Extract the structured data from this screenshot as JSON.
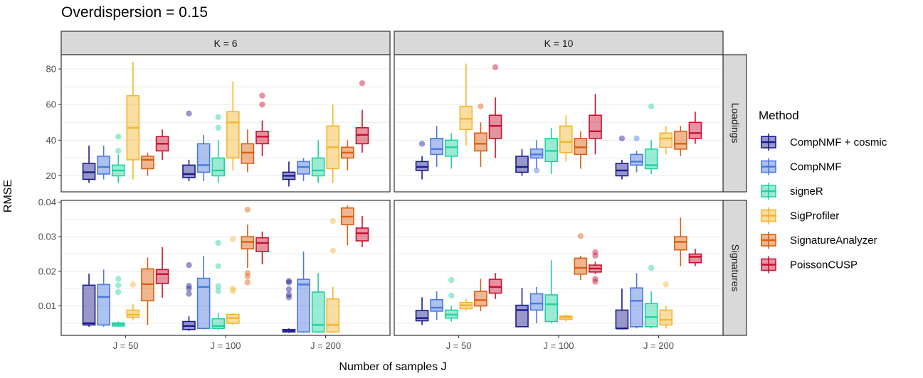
{
  "title": "Overdispersion = 0.15",
  "chart_data": {
    "type": "boxplot",
    "xlabel": "Number of samples J",
    "ylabel": "RMSE",
    "col_facets": [
      "K = 6",
      "K = 10"
    ],
    "row_facets": [
      "Loadings",
      "Signatures"
    ],
    "categories": [
      "J = 50",
      "J = 100",
      "J = 200"
    ],
    "legend": {
      "title": "Method",
      "position": "right",
      "entries": [
        {
          "name": "CompNMF + cosmic",
          "color": "#1a1a8c"
        },
        {
          "name": "CompNMF",
          "color": "#4a78e0"
        },
        {
          "name": "signeR",
          "color": "#22d2a0"
        },
        {
          "name": "SigProfiler",
          "color": "#f5b52e"
        },
        {
          "name": "SignatureAnalyzer",
          "color": "#d95f0e"
        },
        {
          "name": "PoissonCUSP",
          "color": "#c8102e"
        }
      ]
    },
    "rows": [
      {
        "name": "Loadings",
        "yticks": [
          20,
          40,
          60,
          80
        ],
        "ylim": [
          11,
          88
        ],
        "panels": [
          {
            "facet": "K = 6",
            "groups": [
              [
                {
                  "q1": 18,
                  "med": 22,
                  "q3": 27,
                  "lo": 16,
                  "hi": 37,
                  "out": []
                },
                {
                  "q1": 21,
                  "med": 25,
                  "q3": 31,
                  "lo": 18,
                  "hi": 37,
                  "out": []
                },
                {
                  "q1": 20,
                  "med": 23,
                  "q3": 26,
                  "lo": 16,
                  "hi": 32,
                  "out": [
                    34,
                    42
                  ]
                },
                {
                  "q1": 29,
                  "med": 47,
                  "q3": 65,
                  "lo": 18,
                  "hi": 84,
                  "out": []
                },
                {
                  "q1": 24,
                  "med": 29,
                  "q3": 31,
                  "lo": 20,
                  "hi": 33,
                  "out": []
                },
                {
                  "q1": 34,
                  "med": 38,
                  "q3": 42,
                  "lo": 29,
                  "hi": 46,
                  "out": []
                }
              ],
              [
                {
                  "q1": 19,
                  "med": 21,
                  "q3": 26,
                  "lo": 17,
                  "hi": 29,
                  "out": [
                    55
                  ]
                },
                {
                  "q1": 22,
                  "med": 26,
                  "q3": 38,
                  "lo": 17,
                  "hi": 43,
                  "out": []
                },
                {
                  "q1": 20,
                  "med": 23,
                  "q3": 30,
                  "lo": 16,
                  "hi": 40,
                  "out": [
                    47,
                    53
                  ]
                },
                {
                  "q1": 30,
                  "med": 50,
                  "q3": 56,
                  "lo": 23,
                  "hi": 73,
                  "out": []
                },
                {
                  "q1": 27,
                  "med": 33,
                  "q3": 38,
                  "lo": 22,
                  "hi": 46,
                  "out": []
                },
                {
                  "q1": 38,
                  "med": 42,
                  "q3": 45,
                  "lo": 31,
                  "hi": 51,
                  "out": [
                    60,
                    65
                  ]
                }
              ],
              [
                {
                  "q1": 18,
                  "med": 20,
                  "q3": 22,
                  "lo": 14,
                  "hi": 28,
                  "out": []
                },
                {
                  "q1": 21,
                  "med": 25,
                  "q3": 28,
                  "lo": 17,
                  "hi": 30,
                  "out": []
                },
                {
                  "q1": 20,
                  "med": 23,
                  "q3": 30,
                  "lo": 16,
                  "hi": 40,
                  "out": []
                },
                {
                  "q1": 24,
                  "med": 36,
                  "q3": 48,
                  "lo": 16,
                  "hi": 60,
                  "out": []
                },
                {
                  "q1": 30,
                  "med": 33,
                  "q3": 36,
                  "lo": 23,
                  "hi": 40,
                  "out": []
                },
                {
                  "q1": 38,
                  "med": 43,
                  "q3": 47,
                  "lo": 33,
                  "hi": 57,
                  "out": [
                    72
                  ]
                }
              ]
            ]
          },
          {
            "facet": "K = 10",
            "groups": [
              [
                {
                  "q1": 23,
                  "med": 25,
                  "q3": 28,
                  "lo": 18,
                  "hi": 31,
                  "out": [
                    38
                  ]
                },
                {
                  "q1": 32,
                  "med": 35,
                  "q3": 41,
                  "lo": 25,
                  "hi": 48,
                  "out": []
                },
                {
                  "q1": 31,
                  "med": 36,
                  "q3": 40,
                  "lo": 24,
                  "hi": 44,
                  "out": []
                },
                {
                  "q1": 46,
                  "med": 52,
                  "q3": 59,
                  "lo": 37,
                  "hi": 83,
                  "out": []
                },
                {
                  "q1": 34,
                  "med": 38,
                  "q3": 44,
                  "lo": 25,
                  "hi": 50,
                  "out": [
                    59
                  ]
                },
                {
                  "q1": 41,
                  "med": 48,
                  "q3": 54,
                  "lo": 30,
                  "hi": 64,
                  "out": [
                    81
                  ]
                }
              ],
              [
                {
                  "q1": 22,
                  "med": 25,
                  "q3": 31,
                  "lo": 20,
                  "hi": 35,
                  "out": []
                },
                {
                  "q1": 30,
                  "med": 32,
                  "q3": 35,
                  "lo": 24,
                  "hi": 40,
                  "out": [
                    23
                  ]
                },
                {
                  "q1": 28,
                  "med": 34,
                  "q3": 41,
                  "lo": 21,
                  "hi": 47,
                  "out": []
                },
                {
                  "q1": 33,
                  "med": 39,
                  "q3": 48,
                  "lo": 28,
                  "hi": 54,
                  "out": []
                },
                {
                  "q1": 32,
                  "med": 36,
                  "q3": 41,
                  "lo": 24,
                  "hi": 45,
                  "out": []
                },
                {
                  "q1": 41,
                  "med": 45,
                  "q3": 54,
                  "lo": 32,
                  "hi": 66,
                  "out": []
                }
              ],
              [
                {
                  "q1": 20,
                  "med": 23,
                  "q3": 27,
                  "lo": 18,
                  "hi": 29,
                  "out": [
                    41
                  ]
                },
                {
                  "q1": 26,
                  "med": 28,
                  "q3": 32,
                  "lo": 22,
                  "hi": 34,
                  "out": [
                    41
                  ]
                },
                {
                  "q1": 24,
                  "med": 26,
                  "q3": 35,
                  "lo": 21,
                  "hi": 40,
                  "out": [
                    59
                  ]
                },
                {
                  "q1": 36,
                  "med": 41,
                  "q3": 44,
                  "lo": 32,
                  "hi": 48,
                  "out": []
                },
                {
                  "q1": 35,
                  "med": 38,
                  "q3": 45,
                  "lo": 31,
                  "hi": 48,
                  "out": []
                },
                {
                  "q1": 41,
                  "med": 44,
                  "q3": 50,
                  "lo": 38,
                  "hi": 56,
                  "out": []
                }
              ]
            ]
          }
        ]
      },
      {
        "name": "Signatures",
        "yticks": [
          0.01,
          0.02,
          0.03,
          0.04
        ],
        "yticklabels": [
          "0.01",
          "0.02",
          "0.03",
          "0.04"
        ],
        "ylim": [
          0.0015,
          0.0405
        ],
        "panels": [
          {
            "facet": "K = 6",
            "groups": [
              [
                {
                  "q1": 0.0045,
                  "med": 0.005,
                  "q3": 0.016,
                  "lo": 0.004,
                  "hi": 0.0193,
                  "out": []
                },
                {
                  "q1": 0.0045,
                  "med": 0.0126,
                  "q3": 0.0162,
                  "lo": 0.004,
                  "hi": 0.0205,
                  "out": []
                },
                {
                  "q1": 0.0042,
                  "med": 0.0047,
                  "q3": 0.0051,
                  "lo": 0.004,
                  "hi": 0.0055,
                  "out": [
                    0.014,
                    0.016,
                    0.0178
                  ]
                },
                {
                  "q1": 0.0067,
                  "med": 0.0075,
                  "q3": 0.0088,
                  "lo": 0.0058,
                  "hi": 0.0105,
                  "out": [
                    0.0162
                  ]
                },
                {
                  "q1": 0.0115,
                  "med": 0.0163,
                  "q3": 0.0207,
                  "lo": 0.0045,
                  "hi": 0.024,
                  "out": []
                },
                {
                  "q1": 0.0165,
                  "med": 0.0192,
                  "q3": 0.0205,
                  "lo": 0.0124,
                  "hi": 0.027,
                  "out": []
                }
              ],
              [
                {
                  "q1": 0.0032,
                  "med": 0.0042,
                  "q3": 0.0055,
                  "lo": 0.0028,
                  "hi": 0.007,
                  "out": [
                    0.0135,
                    0.015,
                    0.0158,
                    0.0218
                  ]
                },
                {
                  "q1": 0.0035,
                  "med": 0.0155,
                  "q3": 0.018,
                  "lo": 0.0032,
                  "hi": 0.0245,
                  "out": []
                },
                {
                  "q1": 0.0035,
                  "med": 0.0042,
                  "q3": 0.0063,
                  "lo": 0.003,
                  "hi": 0.008,
                  "out": [
                    0.0143,
                    0.0157,
                    0.0215,
                    0.0282
                  ]
                },
                {
                  "q1": 0.005,
                  "med": 0.0065,
                  "q3": 0.0075,
                  "lo": 0.0045,
                  "hi": 0.008,
                  "out": [
                    0.0143,
                    0.015,
                    0.0293
                  ]
                },
                {
                  "q1": 0.0265,
                  "med": 0.0285,
                  "q3": 0.03,
                  "lo": 0.021,
                  "hi": 0.0335,
                  "out": [
                    0.0168,
                    0.0185,
                    0.0195,
                    0.0378
                  ]
                },
                {
                  "q1": 0.0257,
                  "med": 0.0282,
                  "q3": 0.0297,
                  "lo": 0.022,
                  "hi": 0.0315,
                  "out": []
                }
              ],
              [
                {
                  "q1": 0.0025,
                  "med": 0.0027,
                  "q3": 0.0032,
                  "lo": 0.0022,
                  "hi": 0.0035,
                  "out": [
                    0.0125,
                    0.0133,
                    0.0148,
                    0.0168,
                    0.0172
                  ]
                },
                {
                  "q1": 0.0025,
                  "med": 0.0162,
                  "q3": 0.0177,
                  "lo": 0.0022,
                  "hi": 0.0257,
                  "out": []
                },
                {
                  "q1": 0.0025,
                  "med": 0.0045,
                  "q3": 0.014,
                  "lo": 0.0022,
                  "hi": 0.0195,
                  "out": []
                },
                {
                  "q1": 0.0025,
                  "med": 0.0045,
                  "q3": 0.012,
                  "lo": 0.0022,
                  "hi": 0.0155,
                  "out": [
                    0.026,
                    0.0345
                  ]
                },
                {
                  "q1": 0.0335,
                  "med": 0.0358,
                  "q3": 0.0383,
                  "lo": 0.0275,
                  "hi": 0.039,
                  "out": []
                },
                {
                  "q1": 0.0288,
                  "med": 0.031,
                  "q3": 0.0325,
                  "lo": 0.027,
                  "hi": 0.036,
                  "out": []
                }
              ]
            ]
          },
          {
            "facet": "K = 10",
            "groups": [
              [
                {
                  "q1": 0.0057,
                  "med": 0.0065,
                  "q3": 0.0087,
                  "lo": 0.0045,
                  "hi": 0.0125,
                  "out": []
                },
                {
                  "q1": 0.0085,
                  "med": 0.0095,
                  "q3": 0.0118,
                  "lo": 0.006,
                  "hi": 0.0142,
                  "out": []
                },
                {
                  "q1": 0.0065,
                  "med": 0.0075,
                  "q3": 0.0088,
                  "lo": 0.0055,
                  "hi": 0.01,
                  "out": [
                    0.013,
                    0.0175
                  ]
                },
                {
                  "q1": 0.0092,
                  "med": 0.0102,
                  "q3": 0.011,
                  "lo": 0.0085,
                  "hi": 0.012,
                  "out": []
                },
                {
                  "q1": 0.01,
                  "med": 0.0117,
                  "q3": 0.0142,
                  "lo": 0.0085,
                  "hi": 0.0178,
                  "out": []
                },
                {
                  "q1": 0.0137,
                  "med": 0.0155,
                  "q3": 0.0177,
                  "lo": 0.012,
                  "hi": 0.0195,
                  "out": []
                }
              ],
              [
                {
                  "q1": 0.004,
                  "med": 0.0088,
                  "q3": 0.0102,
                  "lo": 0.004,
                  "hi": 0.0152,
                  "out": []
                },
                {
                  "q1": 0.0088,
                  "med": 0.0107,
                  "q3": 0.0135,
                  "lo": 0.005,
                  "hi": 0.0155,
                  "out": []
                },
                {
                  "q1": 0.0055,
                  "med": 0.0105,
                  "q3": 0.0132,
                  "lo": 0.005,
                  "hi": 0.0232,
                  "out": []
                },
                {
                  "q1": 0.0061,
                  "med": 0.0067,
                  "q3": 0.0071,
                  "lo": 0.0055,
                  "hi": 0.0075,
                  "out": []
                },
                {
                  "q1": 0.0192,
                  "med": 0.021,
                  "q3": 0.0238,
                  "lo": 0.0175,
                  "hi": 0.0245,
                  "out": [
                    0.0302
                  ]
                },
                {
                  "q1": 0.0198,
                  "med": 0.0208,
                  "q3": 0.0218,
                  "lo": 0.0192,
                  "hi": 0.0228,
                  "out": [
                    0.017,
                    0.0178,
                    0.0245,
                    0.0255
                  ]
                }
              ],
              [
                {
                  "q1": 0.0035,
                  "med": 0.0035,
                  "q3": 0.0088,
                  "lo": 0.0032,
                  "hi": 0.015,
                  "out": []
                },
                {
                  "q1": 0.004,
                  "med": 0.0115,
                  "q3": 0.0152,
                  "lo": 0.0035,
                  "hi": 0.0195,
                  "out": []
                },
                {
                  "q1": 0.004,
                  "med": 0.0068,
                  "q3": 0.0107,
                  "lo": 0.0035,
                  "hi": 0.0142,
                  "out": [
                    0.021
                  ]
                },
                {
                  "q1": 0.0045,
                  "med": 0.006,
                  "q3": 0.0088,
                  "lo": 0.0035,
                  "hi": 0.01,
                  "out": [
                    0.0162
                  ]
                },
                {
                  "q1": 0.0262,
                  "med": 0.0285,
                  "q3": 0.03,
                  "lo": 0.0215,
                  "hi": 0.0355,
                  "out": []
                },
                {
                  "q1": 0.0225,
                  "med": 0.0242,
                  "q3": 0.025,
                  "lo": 0.0215,
                  "hi": 0.0265,
                  "out": []
                }
              ]
            ]
          }
        ]
      }
    ]
  }
}
